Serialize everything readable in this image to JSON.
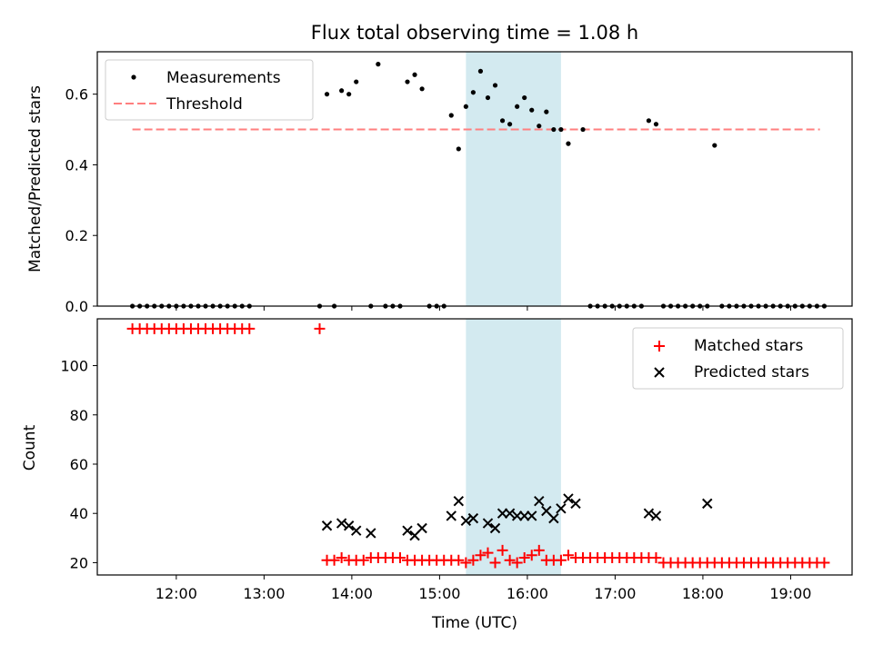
{
  "chart_data": [
    {
      "type": "scatter",
      "title": "Flux total observing time = 1.08 h",
      "xlabel": "",
      "ylabel": "Matched/Predicted stars",
      "xlim": [
        "11:06",
        "19:42"
      ],
      "ylim": [
        0,
        0.72
      ],
      "yticks": [
        "0.0",
        "0.2",
        "0.4",
        "0.6"
      ],
      "highlight_span": [
        "15:18",
        "16:23"
      ],
      "highlight_color": "#d3eaf0",
      "legend": {
        "placement": "upper left",
        "entries": [
          "Measurements",
          "Threshold"
        ]
      },
      "threshold": {
        "name": "Threshold",
        "value": 0.5,
        "x_range": [
          "11:30",
          "19:20"
        ],
        "style": "dashed",
        "color": "#ff7f7f"
      },
      "series": [
        {
          "name": "Measurements",
          "color": "#000000",
          "x": [
            "11:30",
            "11:35",
            "11:40",
            "11:45",
            "11:50",
            "11:55",
            "12:00",
            "12:05",
            "12:10",
            "12:15",
            "12:20",
            "12:25",
            "12:30",
            "12:35",
            "12:40",
            "12:45",
            "12:50",
            "13:38",
            "13:43",
            "13:48",
            "13:53",
            "13:58",
            "14:03",
            "14:13",
            "14:18",
            "14:23",
            "14:28",
            "14:33",
            "14:38",
            "14:43",
            "14:48",
            "14:53",
            "14:58",
            "15:03",
            "15:08",
            "15:13",
            "15:18",
            "15:23",
            "15:28",
            "15:33",
            "15:38",
            "15:43",
            "15:48",
            "15:53",
            "15:58",
            "16:03",
            "16:08",
            "16:13",
            "16:18",
            "16:23",
            "16:28",
            "16:38",
            "16:43",
            "16:48",
            "16:53",
            "16:58",
            "17:03",
            "17:08",
            "17:13",
            "17:18",
            "17:23",
            "17:28",
            "17:33",
            "17:38",
            "17:43",
            "17:48",
            "17:53",
            "17:58",
            "18:03",
            "18:08",
            "18:13",
            "18:18",
            "18:23",
            "18:28",
            "18:33",
            "18:38",
            "18:43",
            "18:48",
            "18:53",
            "18:58",
            "19:03",
            "19:08",
            "19:13",
            "19:18",
            "19:23"
          ],
          "values": [
            0,
            0,
            0,
            0,
            0,
            0,
            0,
            0,
            0,
            0,
            0,
            0,
            0,
            0,
            0,
            0,
            0,
            0,
            0.6,
            0,
            0.61,
            0.6,
            0.635,
            0,
            0.685,
            0,
            0,
            0,
            0.635,
            0.655,
            0.615,
            0,
            0,
            0,
            0.54,
            0.445,
            0.565,
            0.605,
            0.665,
            0.59,
            0.625,
            0.525,
            0.515,
            0.565,
            0.59,
            0.555,
            0.51,
            0.55,
            0.5,
            0.5,
            0.46,
            0.5,
            0,
            0,
            0,
            0,
            0,
            0,
            0,
            0,
            0.525,
            0.515,
            0,
            0,
            0,
            0,
            0,
            0,
            0,
            0.455,
            0,
            0,
            0,
            0,
            0,
            0,
            0,
            0,
            0,
            0,
            0,
            0,
            0,
            0,
            0
          ]
        }
      ]
    },
    {
      "type": "scatter",
      "title": "",
      "xlabel": "Time (UTC)",
      "ylabel": "Count",
      "xlim": [
        "11:06",
        "19:42"
      ],
      "ylim": [
        15,
        119
      ],
      "yticks": [
        "20",
        "40",
        "60",
        "80",
        "100"
      ],
      "xticks": [
        "12:00",
        "13:00",
        "14:00",
        "15:00",
        "16:00",
        "17:00",
        "18:00",
        "19:00"
      ],
      "highlight_span": [
        "15:18",
        "16:23"
      ],
      "legend": {
        "placement": "upper right",
        "entries": [
          "Matched stars",
          "Predicted stars"
        ]
      },
      "series": [
        {
          "name": "Matched stars",
          "marker": "+",
          "color": "#ff0000",
          "x": [
            "11:30",
            "11:35",
            "11:40",
            "11:45",
            "11:50",
            "11:55",
            "12:00",
            "12:05",
            "12:10",
            "12:15",
            "12:20",
            "12:25",
            "12:30",
            "12:35",
            "12:40",
            "12:45",
            "12:50",
            "13:38",
            "13:43",
            "13:48",
            "13:53",
            "13:58",
            "14:03",
            "14:08",
            "14:13",
            "14:18",
            "14:23",
            "14:28",
            "14:33",
            "14:38",
            "14:43",
            "14:48",
            "14:53",
            "14:58",
            "15:03",
            "15:08",
            "15:13",
            "15:18",
            "15:23",
            "15:28",
            "15:33",
            "15:38",
            "15:43",
            "15:48",
            "15:53",
            "15:58",
            "16:03",
            "16:08",
            "16:13",
            "16:18",
            "16:23",
            "16:28",
            "16:33",
            "16:38",
            "16:43",
            "16:48",
            "16:53",
            "16:58",
            "17:03",
            "17:08",
            "17:13",
            "17:18",
            "17:23",
            "17:28",
            "17:33",
            "17:38",
            "17:43",
            "17:48",
            "17:53",
            "17:58",
            "18:03",
            "18:08",
            "18:13",
            "18:18",
            "18:23",
            "18:28",
            "18:33",
            "18:38",
            "18:43",
            "18:48",
            "18:53",
            "18:58",
            "19:03",
            "19:08",
            "19:13",
            "19:18",
            "19:23"
          ],
          "values": [
            115,
            115,
            115,
            115,
            115,
            115,
            115,
            115,
            115,
            115,
            115,
            115,
            115,
            115,
            115,
            115,
            115,
            115,
            21,
            21,
            22,
            21,
            21,
            21,
            22,
            22,
            22,
            22,
            22,
            21,
            21,
            21,
            21,
            21,
            21,
            21,
            21,
            20,
            21,
            23,
            24,
            20,
            25,
            21,
            20,
            22,
            23,
            25,
            21,
            21,
            21,
            23,
            22,
            22,
            22,
            22,
            22,
            22,
            22,
            22,
            22,
            22,
            22,
            22,
            20,
            20,
            20,
            20,
            20,
            20,
            20,
            20,
            20,
            20,
            20,
            20,
            20,
            20,
            20,
            20,
            20,
            20,
            20,
            20,
            20,
            20,
            20
          ]
        },
        {
          "name": "Predicted stars",
          "marker": "x",
          "color": "#000000",
          "x": [
            "13:43",
            "13:53",
            "13:58",
            "14:03",
            "14:13",
            "14:38",
            "14:43",
            "14:48",
            "15:08",
            "15:13",
            "15:18",
            "15:23",
            "15:33",
            "15:38",
            "15:43",
            "15:48",
            "15:53",
            "15:58",
            "16:03",
            "16:08",
            "16:13",
            "16:18",
            "16:23",
            "16:28",
            "16:33",
            "17:23",
            "17:28",
            "18:03"
          ],
          "values": [
            35,
            36,
            35,
            33,
            32,
            33,
            31,
            34,
            39,
            45,
            37,
            38,
            36,
            34,
            40,
            40,
            39,
            39,
            39,
            45,
            41,
            38,
            42,
            46,
            44,
            40,
            39,
            44
          ]
        }
      ]
    }
  ]
}
